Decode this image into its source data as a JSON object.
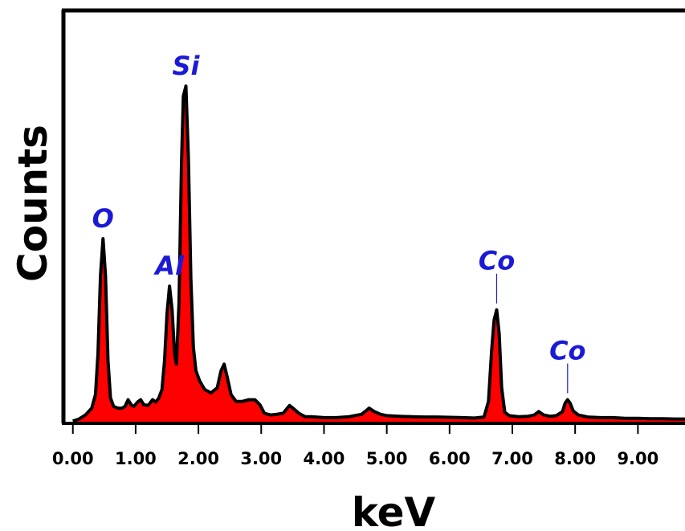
{
  "chart_data": {
    "type": "area",
    "xlabel": "keV",
    "ylabel": "Counts",
    "xlim": [
      -0.15,
      9.75
    ],
    "ylim": [
      0,
      1000
    ],
    "x_ticks": [
      0,
      1,
      2,
      3,
      4,
      5,
      6,
      7,
      8,
      9
    ],
    "x_tick_labels": [
      "0.00",
      "1.00",
      "2.00",
      "3.00",
      "4.00",
      "5.00",
      "6.00",
      "7.00",
      "8.00",
      "9.00"
    ],
    "y_ticks": [],
    "grid": false,
    "legend": "none",
    "colors": {
      "fill": "#ff0000",
      "line": "#000000",
      "label": "#1a1ad6",
      "axis": "#000000"
    },
    "series": [
      {
        "values": [
          [
            0.0,
            2
          ],
          [
            0.1,
            8
          ],
          [
            0.2,
            20
          ],
          [
            0.3,
            40
          ],
          [
            0.36,
            80
          ],
          [
            0.4,
            200
          ],
          [
            0.44,
            430
          ],
          [
            0.48,
            540
          ],
          [
            0.52,
            430
          ],
          [
            0.56,
            180
          ],
          [
            0.6,
            70
          ],
          [
            0.65,
            45
          ],
          [
            0.72,
            40
          ],
          [
            0.78,
            40
          ],
          [
            0.83,
            45
          ],
          [
            0.88,
            65
          ],
          [
            0.93,
            50
          ],
          [
            0.97,
            45
          ],
          [
            1.03,
            58
          ],
          [
            1.08,
            65
          ],
          [
            1.13,
            50
          ],
          [
            1.2,
            48
          ],
          [
            1.27,
            65
          ],
          [
            1.32,
            58
          ],
          [
            1.37,
            70
          ],
          [
            1.42,
            95
          ],
          [
            1.46,
            180
          ],
          [
            1.5,
            320
          ],
          [
            1.54,
            400
          ],
          [
            1.58,
            330
          ],
          [
            1.62,
            200
          ],
          [
            1.65,
            170
          ],
          [
            1.69,
            350
          ],
          [
            1.73,
            760
          ],
          [
            1.76,
            960
          ],
          [
            1.8,
            990
          ],
          [
            1.84,
            780
          ],
          [
            1.88,
            420
          ],
          [
            1.92,
            220
          ],
          [
            1.96,
            150
          ],
          [
            2.02,
            120
          ],
          [
            2.1,
            95
          ],
          [
            2.2,
            85
          ],
          [
            2.3,
            100
          ],
          [
            2.36,
            150
          ],
          [
            2.41,
            170
          ],
          [
            2.46,
            130
          ],
          [
            2.52,
            80
          ],
          [
            2.6,
            60
          ],
          [
            2.7,
            60
          ],
          [
            2.8,
            65
          ],
          [
            2.9,
            65
          ],
          [
            2.98,
            50
          ],
          [
            3.05,
            25
          ],
          [
            3.15,
            20
          ],
          [
            3.25,
            22
          ],
          [
            3.35,
            25
          ],
          [
            3.45,
            48
          ],
          [
            3.52,
            38
          ],
          [
            3.6,
            25
          ],
          [
            3.7,
            15
          ],
          [
            3.8,
            15
          ],
          [
            4.0,
            12
          ],
          [
            4.2,
            12
          ],
          [
            4.4,
            15
          ],
          [
            4.6,
            22
          ],
          [
            4.72,
            40
          ],
          [
            4.8,
            30
          ],
          [
            4.9,
            22
          ],
          [
            5.0,
            18
          ],
          [
            5.2,
            16
          ],
          [
            5.4,
            15
          ],
          [
            5.6,
            14
          ],
          [
            5.8,
            14
          ],
          [
            6.0,
            13
          ],
          [
            6.2,
            12
          ],
          [
            6.4,
            11
          ],
          [
            6.55,
            14
          ],
          [
            6.62,
            60
          ],
          [
            6.67,
            210
          ],
          [
            6.71,
            300
          ],
          [
            6.75,
            330
          ],
          [
            6.79,
            260
          ],
          [
            6.83,
            100
          ],
          [
            6.88,
            28
          ],
          [
            6.95,
            18
          ],
          [
            7.1,
            15
          ],
          [
            7.25,
            16
          ],
          [
            7.35,
            20
          ],
          [
            7.42,
            30
          ],
          [
            7.5,
            20
          ],
          [
            7.6,
            16
          ],
          [
            7.7,
            18
          ],
          [
            7.8,
            30
          ],
          [
            7.84,
            55
          ],
          [
            7.88,
            65
          ],
          [
            7.92,
            55
          ],
          [
            7.97,
            32
          ],
          [
            8.05,
            20
          ],
          [
            8.2,
            14
          ],
          [
            8.4,
            12
          ],
          [
            8.6,
            12
          ],
          [
            8.8,
            10
          ],
          [
            9.0,
            10
          ],
          [
            9.2,
            9
          ],
          [
            9.4,
            9
          ],
          [
            9.6,
            8
          ],
          [
            9.75,
            8
          ]
        ]
      }
    ],
    "annotations": [
      {
        "text": "O",
        "x": 0.48,
        "y": 540,
        "leader": false
      },
      {
        "text": "Al",
        "x": 1.54,
        "y": 400,
        "leader": false
      },
      {
        "text": "Si",
        "x": 1.8,
        "y": 990,
        "leader": false
      },
      {
        "text": "Co",
        "x": 6.75,
        "y": 330,
        "leader": true
      },
      {
        "text": "Co",
        "x": 7.88,
        "y": 65,
        "leader": true
      }
    ]
  }
}
